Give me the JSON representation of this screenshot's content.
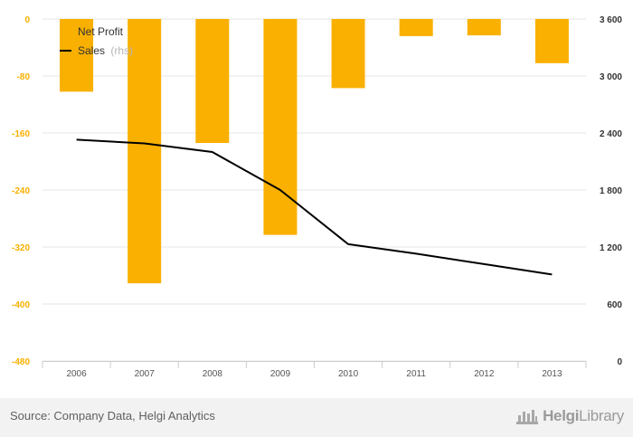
{
  "chart_data": {
    "type": "bar",
    "categories": [
      "2006",
      "2007",
      "2008",
      "2009",
      "2010",
      "2011",
      "2012",
      "2013"
    ],
    "series": [
      {
        "name": "Net Profit",
        "type": "bar",
        "axis": "left",
        "color": "#f9b000",
        "values": [
          -102,
          -371,
          -174,
          -303,
          -97,
          -24,
          -23,
          -62
        ]
      },
      {
        "name": "Sales",
        "name_suffix": "(rhs)",
        "type": "line",
        "axis": "right",
        "color": "#000000",
        "values": [
          2330,
          2290,
          2200,
          1800,
          1230,
          1130,
          1020,
          910
        ]
      }
    ],
    "left_axis": {
      "ylim": [
        -480,
        0
      ],
      "ticks": [
        0,
        -80,
        -160,
        -240,
        -320,
        -400,
        -480
      ],
      "tick_labels": [
        "0",
        "-80",
        "-160",
        "-240",
        "-320",
        "-400",
        "-480"
      ],
      "color": "#f9b000"
    },
    "right_axis": {
      "ylim": [
        0,
        3600
      ],
      "ticks": [
        3600,
        3000,
        2400,
        1800,
        1200,
        600,
        0
      ],
      "tick_labels": [
        "3 600",
        "3 000",
        "2 400",
        "1 800",
        "1 200",
        "600",
        "0"
      ],
      "color": "#333333"
    },
    "grid": true,
    "legend": "top-left"
  },
  "footer": {
    "source": "Source: Company Data, Helgi Analytics",
    "logo_text_a": "Helgi",
    "logo_text_b": "Library"
  }
}
